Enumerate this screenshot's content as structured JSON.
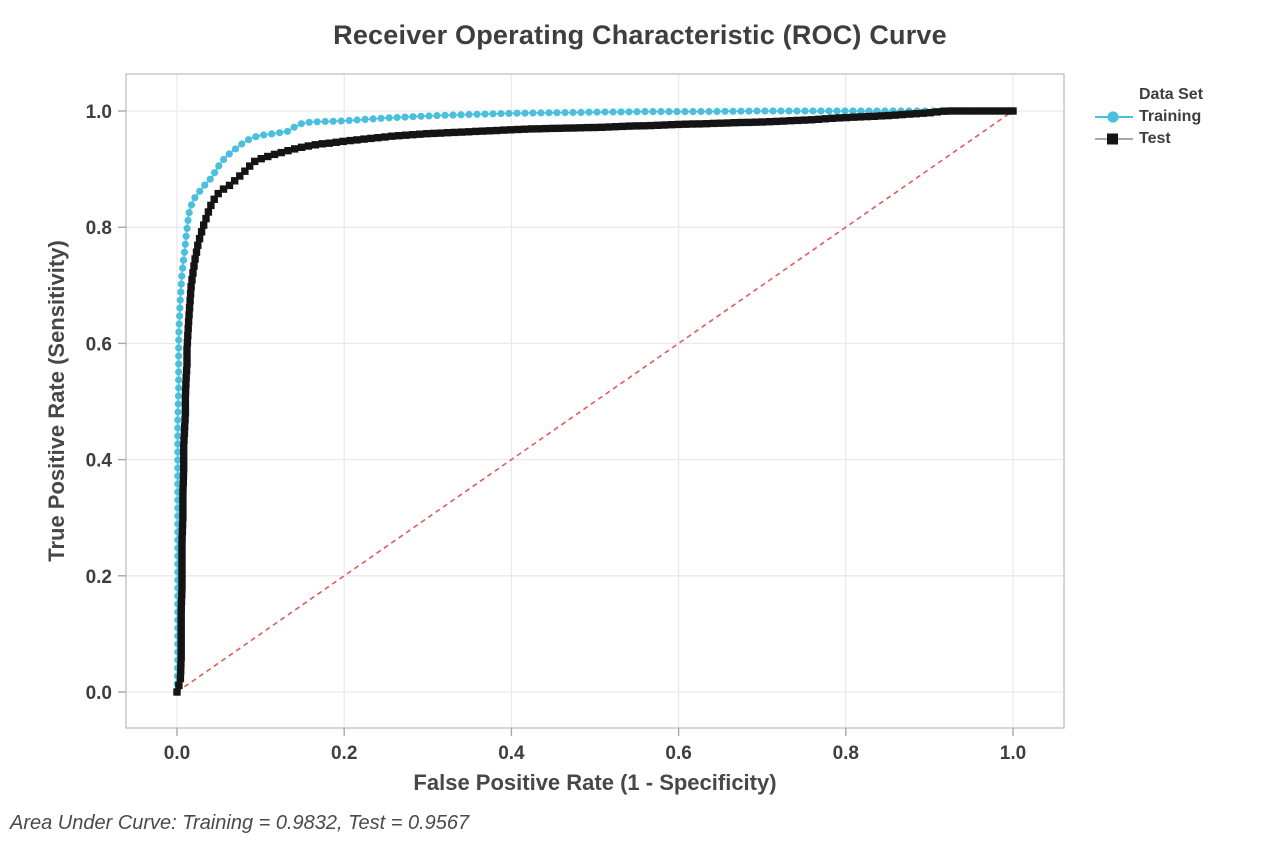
{
  "chart_data": {
    "type": "line",
    "title": "Receiver Operating Characteristic (ROC) Curve",
    "xlabel": "False Positive Rate (1 - Specificity)",
    "ylabel": "True Positive Rate (Sensitivity)",
    "xlim": [
      -0.06,
      1.06
    ],
    "ylim": [
      -0.06,
      1.06
    ],
    "grid": true,
    "xticks": {
      "values": [
        0,
        0.2,
        0.4,
        0.6,
        0.8,
        1.0
      ],
      "labels": [
        "0.0",
        "0.2",
        "0.4",
        "0.6",
        "0.8",
        "1.0"
      ]
    },
    "yticks": {
      "values": [
        0,
        0.2,
        0.4,
        0.6,
        0.8,
        1.0
      ],
      "labels": [
        "0.0",
        "0.2",
        "0.4",
        "0.6",
        "0.8",
        "1.0"
      ]
    },
    "legend": {
      "title": "Data Set",
      "position": "right"
    },
    "reference_line": {
      "from": [
        0,
        0
      ],
      "to": [
        1,
        1
      ],
      "style": "dashed",
      "color": "#e05c5c"
    },
    "colors": {
      "training": "#4bc0dd",
      "test": "#141414",
      "test_line": "#555555",
      "legend_test_line": "#8c8c8c",
      "grid": "#eaeaea",
      "frame": "#c0c0c0",
      "tick": "#a8a8a8",
      "text": "#3e3e3e"
    },
    "series": [
      {
        "name": "Training",
        "marker": "circle",
        "color": "#4bc0dd",
        "auc": 0.9832,
        "points": [
          [
            0,
            0
          ],
          [
            0.001,
            0.06
          ],
          [
            0.001,
            0.12
          ],
          [
            0.001,
            0.18
          ],
          [
            0.001,
            0.24
          ],
          [
            0.001,
            0.3
          ],
          [
            0.001,
            0.36
          ],
          [
            0.001,
            0.42
          ],
          [
            0.001,
            0.47
          ],
          [
            0.002,
            0.52
          ],
          [
            0.002,
            0.57
          ],
          [
            0.002,
            0.61
          ],
          [
            0.003,
            0.645
          ],
          [
            0.004,
            0.675
          ],
          [
            0.005,
            0.7
          ],
          [
            0.006,
            0.72
          ],
          [
            0.0075,
            0.74
          ],
          [
            0.009,
            0.757
          ],
          [
            0.01,
            0.772
          ],
          [
            0.011,
            0.785
          ],
          [
            0.012,
            0.797
          ],
          [
            0.013,
            0.81
          ],
          [
            0.014,
            0.822
          ],
          [
            0.016,
            0.833
          ],
          [
            0.018,
            0.841
          ],
          [
            0.02,
            0.848
          ],
          [
            0.024,
            0.856
          ],
          [
            0.029,
            0.865
          ],
          [
            0.034,
            0.874
          ],
          [
            0.038,
            0.88
          ],
          [
            0.042,
            0.886
          ],
          [
            0.047,
            0.899
          ],
          [
            0.053,
            0.912
          ],
          [
            0.059,
            0.922
          ],
          [
            0.065,
            0.929
          ],
          [
            0.072,
            0.937
          ],
          [
            0.08,
            0.946
          ],
          [
            0.09,
            0.954
          ],
          [
            0.1,
            0.958
          ],
          [
            0.11,
            0.96
          ],
          [
            0.12,
            0.962
          ],
          [
            0.133,
            0.965
          ],
          [
            0.14,
            0.972
          ],
          [
            0.148,
            0.978
          ],
          [
            0.16,
            0.981
          ],
          [
            0.18,
            0.982
          ],
          [
            0.2,
            0.983
          ],
          [
            0.22,
            0.985
          ],
          [
            0.25,
            0.988
          ],
          [
            0.28,
            0.99
          ],
          [
            0.31,
            0.992
          ],
          [
            0.35,
            0.994
          ],
          [
            0.4,
            0.996
          ],
          [
            0.45,
            0.997
          ],
          [
            0.5,
            0.998
          ],
          [
            0.56,
            0.999
          ],
          [
            0.62,
            0.999
          ],
          [
            0.7,
            1.0
          ],
          [
            0.78,
            1.0
          ],
          [
            0.85,
            1.0
          ],
          [
            0.92,
            1.0
          ],
          [
            1.0,
            1.0
          ]
        ]
      },
      {
        "name": "Test",
        "marker": "square",
        "color": "#141414",
        "auc": 0.9567,
        "points": [
          [
            0,
            0
          ],
          [
            0.004,
            0.02
          ],
          [
            0.005,
            0.06
          ],
          [
            0.005,
            0.1
          ],
          [
            0.005,
            0.14
          ],
          [
            0.006,
            0.18
          ],
          [
            0.006,
            0.22
          ],
          [
            0.006,
            0.26
          ],
          [
            0.007,
            0.3
          ],
          [
            0.007,
            0.34
          ],
          [
            0.008,
            0.38
          ],
          [
            0.008,
            0.42
          ],
          [
            0.009,
            0.45
          ],
          [
            0.01,
            0.48
          ],
          [
            0.01,
            0.51
          ],
          [
            0.011,
            0.54
          ],
          [
            0.012,
            0.565
          ],
          [
            0.012,
            0.59
          ],
          [
            0.013,
            0.615
          ],
          [
            0.014,
            0.64
          ],
          [
            0.015,
            0.66
          ],
          [
            0.016,
            0.68
          ],
          [
            0.017,
            0.7
          ],
          [
            0.019,
            0.72
          ],
          [
            0.021,
            0.74
          ],
          [
            0.023,
            0.755
          ],
          [
            0.025,
            0.77
          ],
          [
            0.028,
            0.785
          ],
          [
            0.031,
            0.8
          ],
          [
            0.034,
            0.812
          ],
          [
            0.037,
            0.824
          ],
          [
            0.04,
            0.836
          ],
          [
            0.044,
            0.847
          ],
          [
            0.048,
            0.856
          ],
          [
            0.052,
            0.862
          ],
          [
            0.057,
            0.867
          ],
          [
            0.062,
            0.871
          ],
          [
            0.067,
            0.877
          ],
          [
            0.072,
            0.884
          ],
          [
            0.078,
            0.892
          ],
          [
            0.084,
            0.9
          ],
          [
            0.091,
            0.912
          ],
          [
            0.099,
            0.917
          ],
          [
            0.107,
            0.921
          ],
          [
            0.116,
            0.925
          ],
          [
            0.126,
            0.929
          ],
          [
            0.136,
            0.933
          ],
          [
            0.147,
            0.937
          ],
          [
            0.158,
            0.94
          ],
          [
            0.17,
            0.943
          ],
          [
            0.185,
            0.945
          ],
          [
            0.2,
            0.948
          ],
          [
            0.22,
            0.951
          ],
          [
            0.24,
            0.954
          ],
          [
            0.26,
            0.957
          ],
          [
            0.28,
            0.959
          ],
          [
            0.3,
            0.961
          ],
          [
            0.33,
            0.963
          ],
          [
            0.36,
            0.965
          ],
          [
            0.39,
            0.967
          ],
          [
            0.42,
            0.969
          ],
          [
            0.45,
            0.97
          ],
          [
            0.48,
            0.971
          ],
          [
            0.51,
            0.972
          ],
          [
            0.54,
            0.974
          ],
          [
            0.57,
            0.975
          ],
          [
            0.6,
            0.977
          ],
          [
            0.63,
            0.978
          ],
          [
            0.67,
            0.98
          ],
          [
            0.7,
            0.981
          ],
          [
            0.73,
            0.983
          ],
          [
            0.76,
            0.985
          ],
          [
            0.79,
            0.988
          ],
          [
            0.82,
            0.99
          ],
          [
            0.85,
            0.992
          ],
          [
            0.88,
            0.995
          ],
          [
            0.9,
            0.997
          ],
          [
            0.92,
            1.0
          ],
          [
            0.96,
            1.0
          ],
          [
            1.0,
            1.0
          ]
        ]
      }
    ],
    "footer": "Area Under Curve: Training = 0.9832, Test = 0.9567"
  }
}
